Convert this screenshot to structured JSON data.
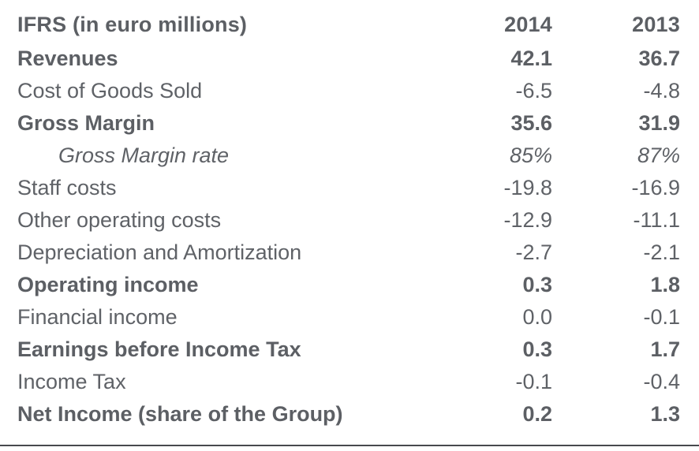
{
  "table": {
    "header": {
      "label": "IFRS (in euro millions)",
      "col_2014": "2014",
      "col_2013": "2013"
    },
    "rows": [
      {
        "label": "Revenues",
        "v2014": "42.1",
        "v2013": "36.7",
        "style": "bold"
      },
      {
        "label": "Cost of Goods Sold",
        "v2014": "-6.5",
        "v2013": "-4.8",
        "style": "regular"
      },
      {
        "label": "Gross Margin",
        "v2014": "35.6",
        "v2013": "31.9",
        "style": "bold"
      },
      {
        "label": "Gross Margin rate",
        "v2014": "85%",
        "v2013": "87%",
        "style": "italic-indent"
      },
      {
        "label": "Staff costs",
        "v2014": "-19.8",
        "v2013": "-16.9",
        "style": "regular"
      },
      {
        "label": "Other operating costs",
        "v2014": "-12.9",
        "v2013": "-11.1",
        "style": "regular"
      },
      {
        "label": "Depreciation and Amortization",
        "v2014": "-2.7",
        "v2013": "-2.1",
        "style": "regular"
      },
      {
        "label": "Operating income",
        "v2014": "0.3",
        "v2013": "1.8",
        "style": "bold"
      },
      {
        "label": "Financial income",
        "v2014": "0.0",
        "v2013": "-0.1",
        "style": "regular"
      },
      {
        "label": "Earnings before Income Tax",
        "v2014": "0.3",
        "v2013": "1.7",
        "style": "bold"
      },
      {
        "label": "Income Tax",
        "v2014": "-0.1",
        "v2013": "-0.4",
        "style": "regular"
      },
      {
        "label": "Net Income (share of the Group)",
        "v2014": "0.2",
        "v2013": "1.3",
        "style": "bold"
      }
    ]
  },
  "colors": {
    "background": "#ffffff",
    "text": "#5f6267",
    "bold_text": "#5c5f64",
    "bottom_rule": "#47494d"
  }
}
